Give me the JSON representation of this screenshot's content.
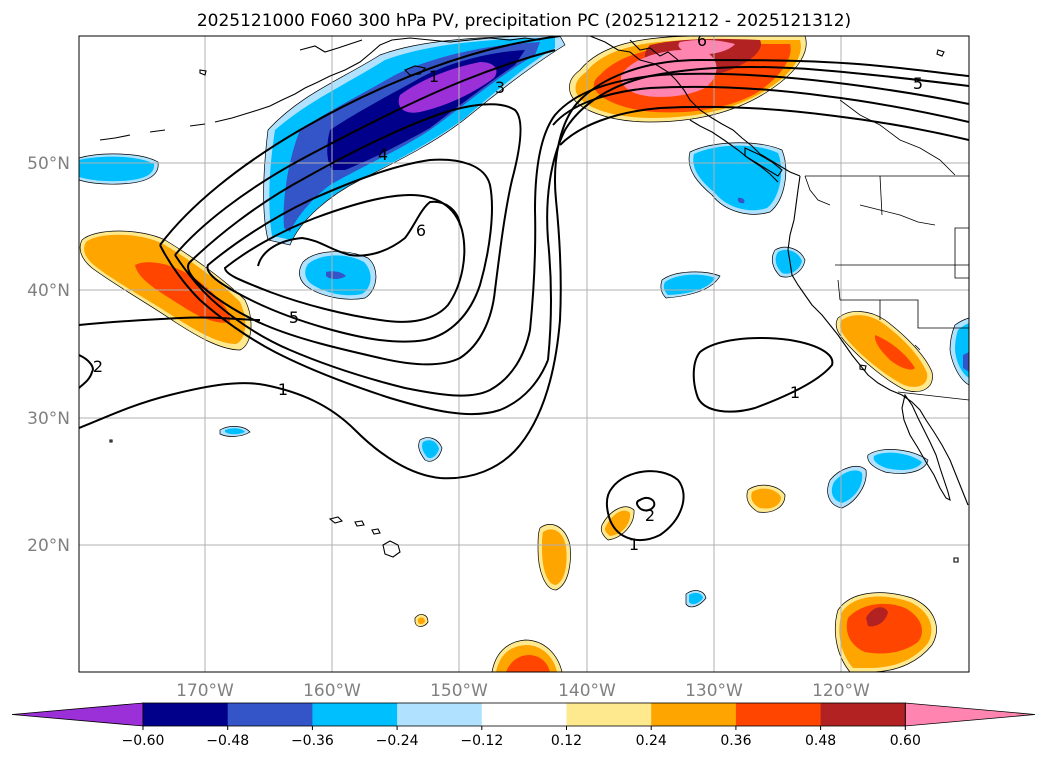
{
  "title": "2025121000 F060 300 hPa PV, precipitation PC (2025121212 - 2025121312)",
  "lat_labels": [
    "50°N",
    "40°N",
    "30°N",
    "20°N"
  ],
  "lon_labels": [
    "170°W",
    "160°W",
    "150°W",
    "140°W",
    "130°W",
    "120°W"
  ],
  "colorbar": {
    "ticks": [
      "−0.60",
      "−0.48",
      "−0.36",
      "−0.24",
      "−0.12",
      "0.12",
      "0.24",
      "0.36",
      "0.48",
      "0.60"
    ],
    "colors": [
      "#9b30d8",
      "#00008b",
      "#3455c7",
      "#00bfff",
      "#b0e2ff",
      "#ffffff",
      "#ffe98f",
      "#ffa500",
      "#ff4500",
      "#b22222",
      "#ff85b0"
    ]
  },
  "contour_labels": [
    "1",
    "1",
    "1",
    "1",
    "2",
    "2",
    "3",
    "4",
    "5",
    "5",
    "6",
    "6"
  ],
  "chart_data": {
    "type": "heatmap",
    "title": "2025121000 F060 300 hPa PV, precipitation PC (2025121212 - 2025121312)",
    "variables": {
      "contours": "300 hPa PV",
      "shading": "precipitation PC"
    },
    "lat_range": [
      10,
      60
    ],
    "lon_range": [
      -180,
      -110
    ],
    "lat_ticks": [
      50,
      40,
      30,
      20
    ],
    "lon_ticks": [
      -170,
      -160,
      -150,
      -140,
      -130,
      -120
    ],
    "shading_levels": [
      -0.6,
      -0.48,
      -0.36,
      -0.24,
      -0.12,
      0.12,
      0.24,
      0.36,
      0.48,
      0.6
    ],
    "pv_contour_levels": [
      1,
      2,
      3,
      4,
      5,
      6
    ]
  }
}
